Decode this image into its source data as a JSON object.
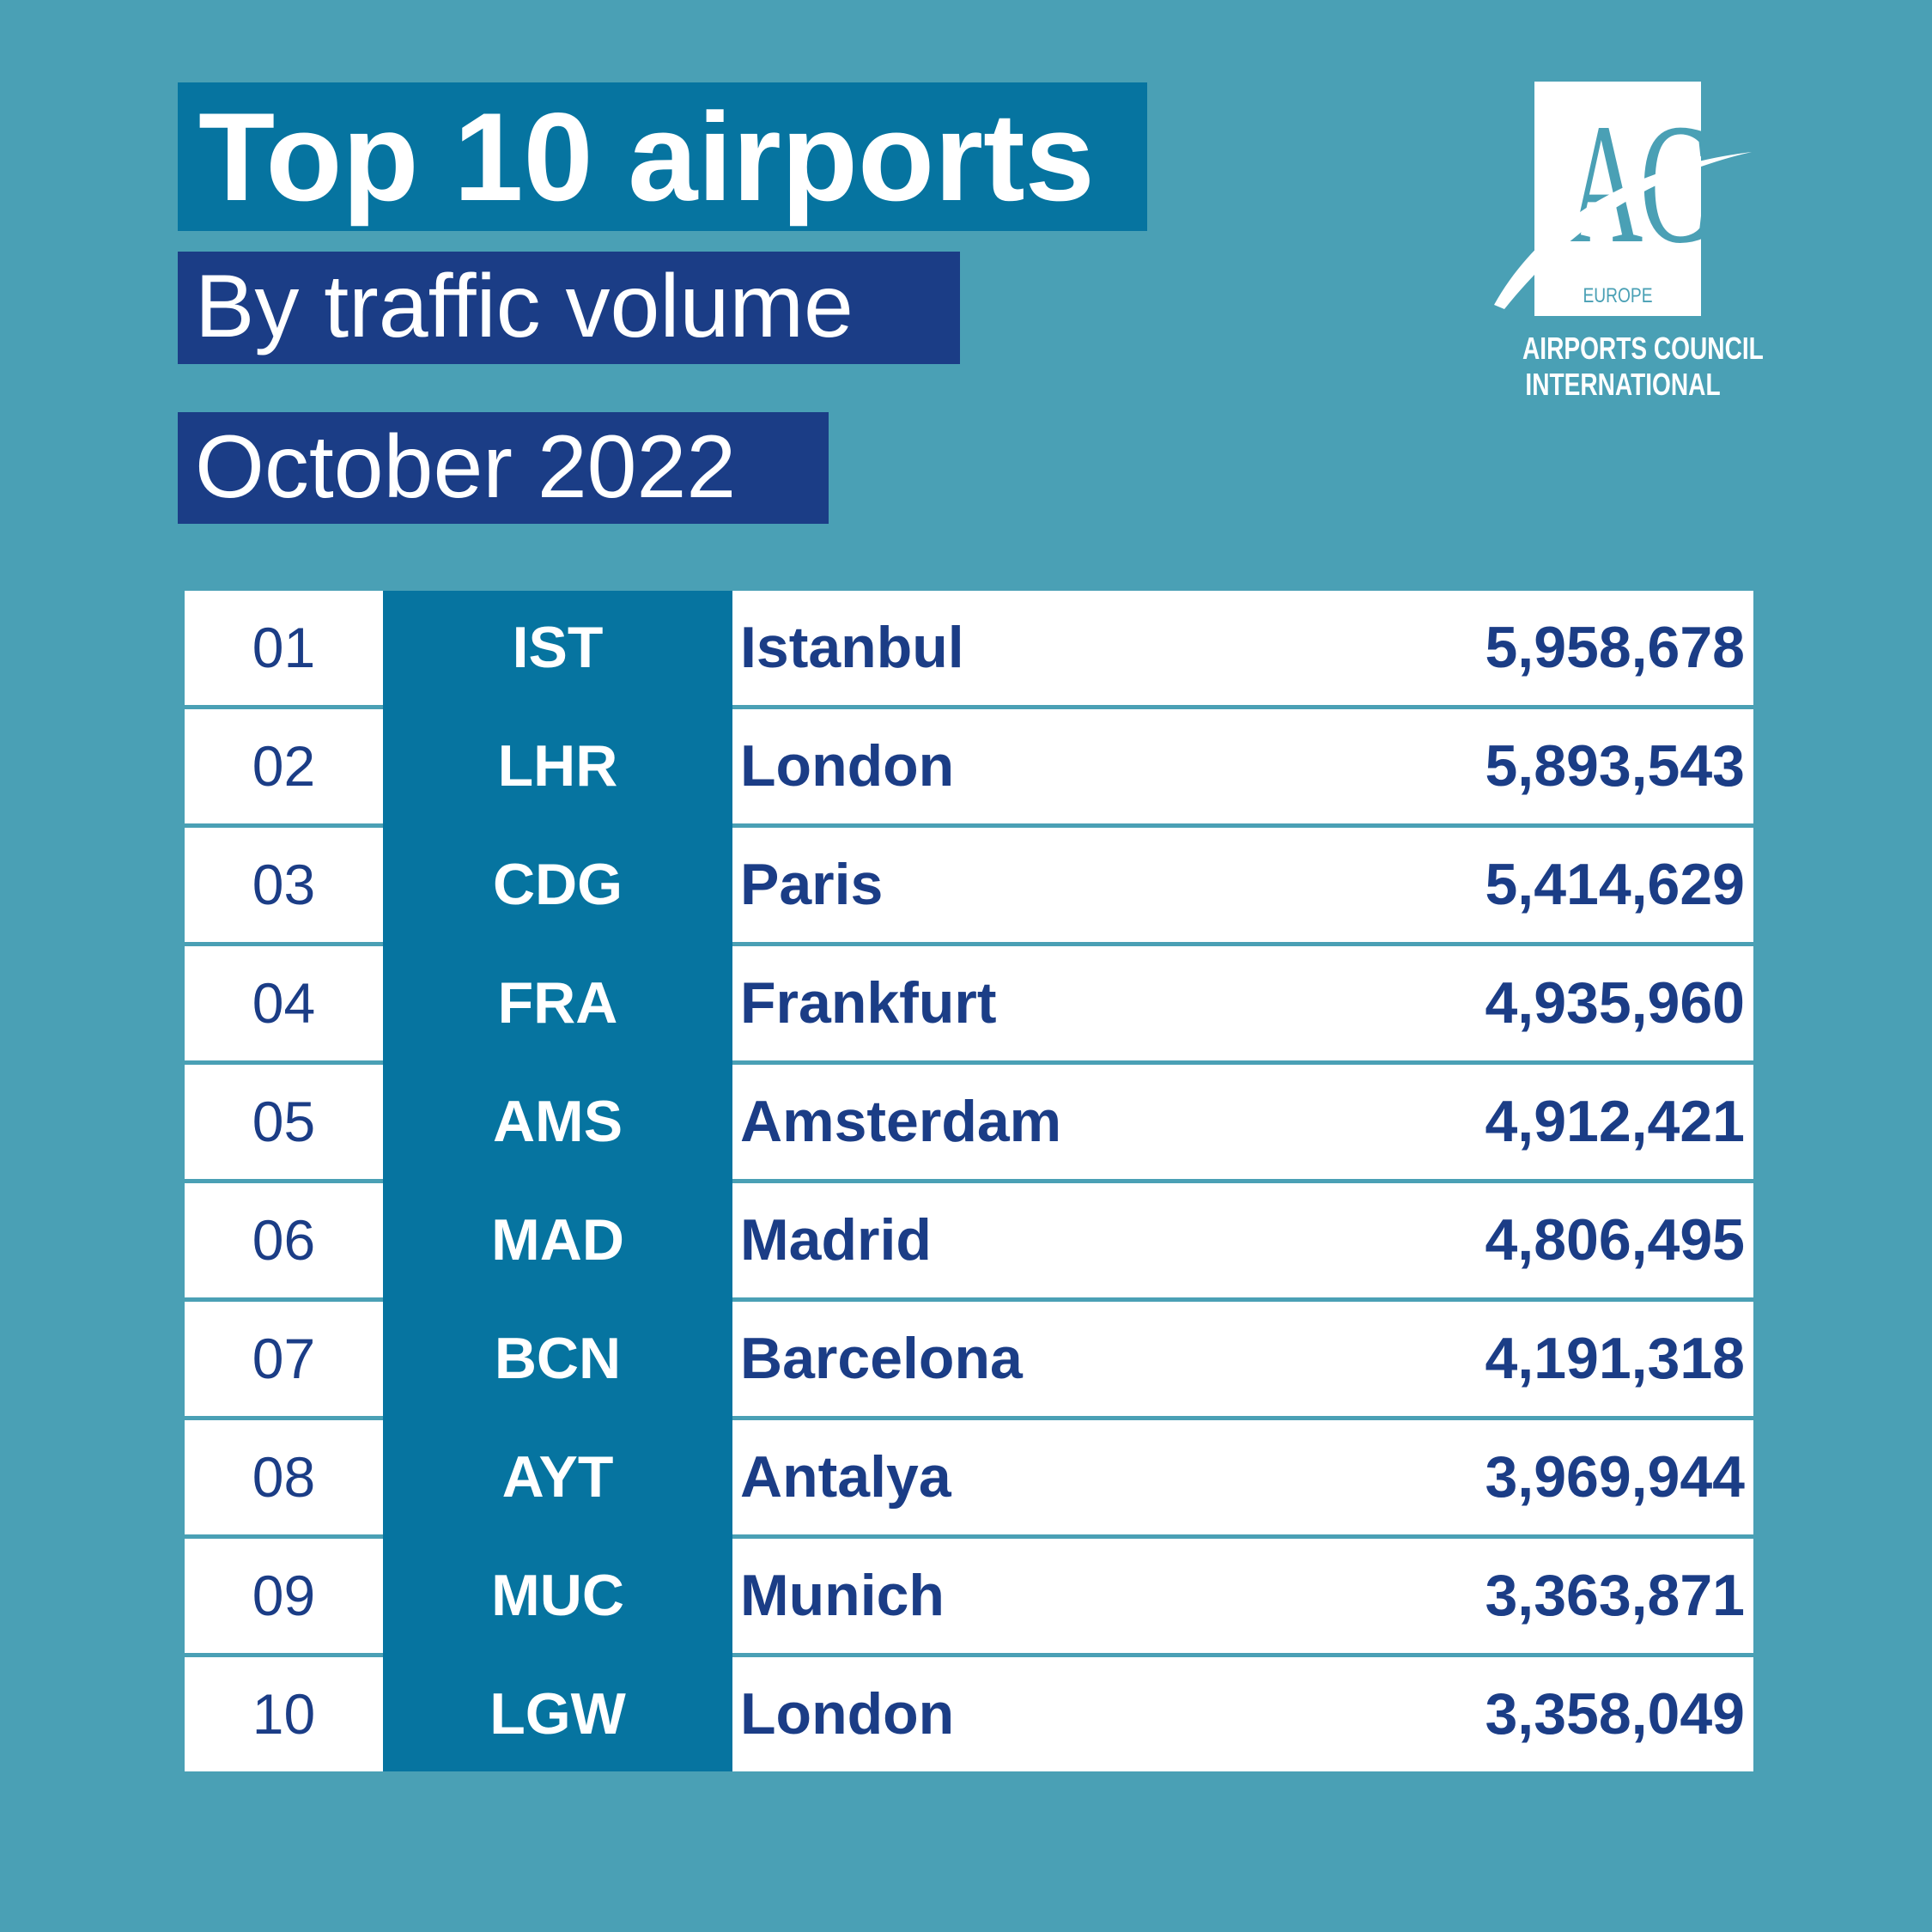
{
  "header": {
    "title": "Top 10 airports",
    "subtitle": "By traffic volume",
    "period": "October 2022"
  },
  "logo": {
    "letters": "ACI",
    "region": "EUROPE",
    "line1": "AIRPORTS COUNCIL",
    "line2": "INTERNATIONAL"
  },
  "colors": {
    "background": "#4aa0b5",
    "title_box": "#0674a0",
    "subtitle_box": "#1b3d86",
    "code_column": "#0674a0",
    "text_dark": "#1b3d86"
  },
  "rows": [
    {
      "rank": "01",
      "code": "IST",
      "city": "Istanbul",
      "value": "5,958,678"
    },
    {
      "rank": "02",
      "code": "LHR",
      "city": "London",
      "value": "5,893,543"
    },
    {
      "rank": "03",
      "code": "CDG",
      "city": "Paris",
      "value": "5,414,629"
    },
    {
      "rank": "04",
      "code": "FRA",
      "city": "Frankfurt",
      "value": "4,935,960"
    },
    {
      "rank": "05",
      "code": "AMS",
      "city": "Amsterdam",
      "value": "4,912,421"
    },
    {
      "rank": "06",
      "code": "MAD",
      "city": "Madrid",
      "value": "4,806,495"
    },
    {
      "rank": "07",
      "code": "BCN",
      "city": "Barcelona",
      "value": "4,191,318"
    },
    {
      "rank": "08",
      "code": "AYT",
      "city": "Antalya",
      "value": "3,969,944"
    },
    {
      "rank": "09",
      "code": "MUC",
      "city": "Munich",
      "value": "3,363,871"
    },
    {
      "rank": "10",
      "code": "LGW",
      "city": "London",
      "value": "3,358,049"
    }
  ]
}
